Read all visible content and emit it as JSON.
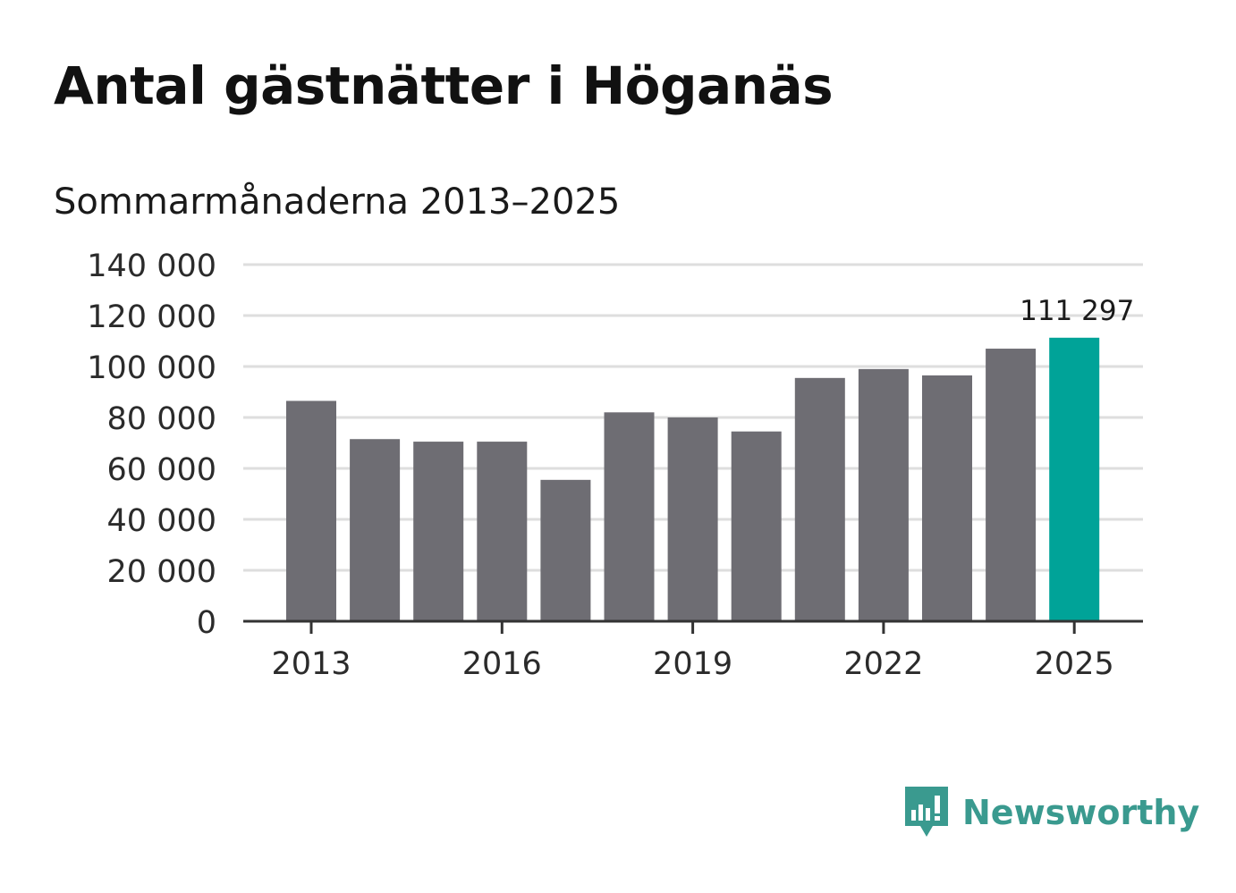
{
  "title": "Antal gästnätter i Höganäs",
  "subtitle": "Sommarmånaderna 2013–2025",
  "chart_data": {
    "type": "bar",
    "categories": [
      "2013",
      "2014",
      "2015",
      "2016",
      "2017",
      "2018",
      "2019",
      "2020",
      "2021",
      "2022",
      "2023",
      "2024",
      "2025"
    ],
    "values": [
      86500,
      71500,
      70500,
      70500,
      55500,
      82000,
      80000,
      74500,
      95500,
      99000,
      96500,
      107000,
      111297
    ],
    "x_tick_labels": [
      "2013",
      "2016",
      "2019",
      "2022",
      "2025"
    ],
    "y_ticks": [
      0,
      20000,
      40000,
      60000,
      80000,
      100000,
      120000,
      140000
    ],
    "y_tick_labels": [
      "0",
      "20 000",
      "40 000",
      "60 000",
      "80 000",
      "100 000",
      "120 000",
      "140 000"
    ],
    "ylim": [
      0,
      140000
    ],
    "highlight_category": "2025",
    "highlight_label": "111 297",
    "colors": {
      "bar": "#6e6d73",
      "highlight": "#00a398",
      "grid": "#dedede",
      "axis": "#333333"
    },
    "grid": true
  },
  "brand": {
    "name": "Newsworthy",
    "icon": "newsworthy-logo-icon",
    "color": "#3a9a8f"
  }
}
